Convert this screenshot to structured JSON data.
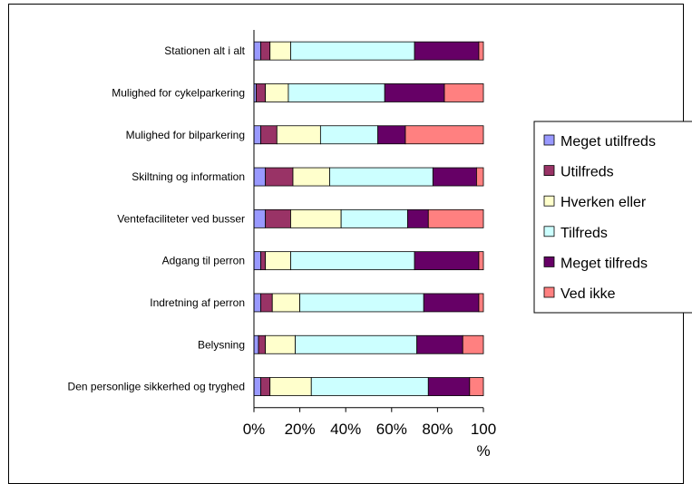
{
  "chart_data": {
    "type": "bar",
    "orientation": "horizontal",
    "stacked": "100%",
    "categories": [
      "Stationen alt i alt",
      "Mulighed for cykelparkering",
      "Mulighed for bilparkering",
      "Skiltning og information",
      "Ventefaciliteter ved busser",
      "Adgang til perron",
      "Indretning af perron",
      "Belysning",
      "Den personlige sikkerhed og tryghed"
    ],
    "series": [
      {
        "name": "Meget utilfreds",
        "color": "#9999ff",
        "values": [
          3,
          1,
          3,
          5,
          5,
          3,
          3,
          2,
          3
        ]
      },
      {
        "name": "Utilfreds",
        "color": "#993366",
        "values": [
          4,
          4,
          7,
          12,
          11,
          2,
          5,
          3,
          4
        ]
      },
      {
        "name": "Hverken eller",
        "color": "#ffffcc",
        "values": [
          9,
          10,
          19,
          16,
          22,
          11,
          12,
          13,
          18
        ]
      },
      {
        "name": "Tilfreds",
        "color": "#ccffff",
        "values": [
          54,
          42,
          25,
          45,
          29,
          54,
          54,
          53,
          51
        ]
      },
      {
        "name": "Meget tilfreds",
        "color": "#660066",
        "values": [
          28,
          26,
          12,
          19,
          9,
          28,
          24,
          20,
          18
        ]
      },
      {
        "name": "Ved ikke",
        "color": "#ff8080",
        "values": [
          2,
          17,
          34,
          3,
          24,
          2,
          2,
          9,
          6
        ]
      }
    ],
    "xlim": [
      0,
      100
    ],
    "xticks": [
      "0%",
      "20%",
      "40%",
      "60%",
      "80%",
      "100"
    ],
    "x_unit_label": "%",
    "legend_position": "right",
    "grid": false
  }
}
